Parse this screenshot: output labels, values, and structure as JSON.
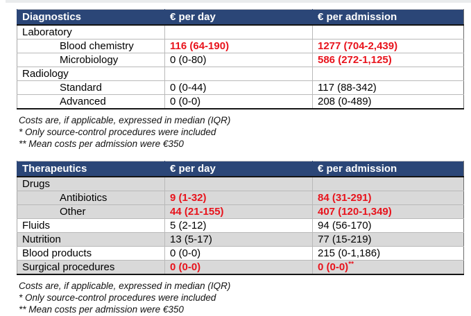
{
  "colors": {
    "header_bg": "#2B4677",
    "header_fg": "#FFFFFF",
    "shaded_row_bg": "#D9D9D9",
    "highlight_red": "#E8131C",
    "body_text": "#000000"
  },
  "chart_data": {
    "type": "table",
    "tables": [
      {
        "title": "Diagnostics",
        "columns": [
          "€ per day",
          "€ per admission"
        ],
        "rows": [
          {
            "label": "Laboratory",
            "indent": false,
            "per_day": "",
            "per_admission": "",
            "day_red": false,
            "adm_red": false,
            "shaded": false
          },
          {
            "label": "Blood chemistry",
            "indent": true,
            "per_day": "116 (64-190)",
            "per_admission": "1277 (704-2,439)",
            "day_red": true,
            "adm_red": true,
            "shaded": false
          },
          {
            "label": "Microbiology",
            "indent": true,
            "per_day": "0 (0-80)",
            "per_admission": "586 (272-1,125)",
            "day_red": false,
            "adm_red": true,
            "shaded": false
          },
          {
            "label": "Radiology",
            "indent": false,
            "per_day": "",
            "per_admission": "",
            "day_red": false,
            "adm_red": false,
            "shaded": false
          },
          {
            "label": "Standard",
            "indent": true,
            "per_day": "0 (0-44)",
            "per_admission": "117 (88-342)",
            "day_red": false,
            "adm_red": false,
            "shaded": false
          },
          {
            "label": "Advanced",
            "indent": true,
            "per_day": "0 (0-0)",
            "per_admission": "208 (0-489)",
            "day_red": false,
            "adm_red": false,
            "shaded": false
          }
        ],
        "footnotes": [
          "Costs are, if applicable, expressed in median (IQR)",
          "* Only source-control procedures were included",
          "** Mean costs per admission were €350"
        ]
      },
      {
        "title": "Therapeutics",
        "columns": [
          "€ per day",
          "€ per admission"
        ],
        "rows": [
          {
            "label": "Drugs",
            "indent": false,
            "per_day": "",
            "per_admission": "",
            "day_red": false,
            "adm_red": false,
            "shaded": true
          },
          {
            "label": "Antibiotics",
            "indent": true,
            "per_day": "9 (1-32)",
            "per_admission": "84 (31-291)",
            "day_red": true,
            "adm_red": true,
            "shaded": true
          },
          {
            "label": "Other",
            "indent": true,
            "per_day": "44 (21-155)",
            "per_admission": "407 (120-1,349)",
            "day_red": true,
            "adm_red": true,
            "shaded": true
          },
          {
            "label": "Fluids",
            "indent": false,
            "per_day": "5 (2-12)",
            "per_admission": "94 (56-170)",
            "day_red": false,
            "adm_red": false,
            "shaded": false
          },
          {
            "label": "Nutrition",
            "indent": false,
            "per_day": "13 (5-17)",
            "per_admission": "77 (15-219)",
            "day_red": false,
            "adm_red": false,
            "shaded": true
          },
          {
            "label": "Blood products",
            "indent": false,
            "per_day": "0 (0-0)",
            "per_admission": "215 (0-1,186)",
            "day_red": false,
            "adm_red": false,
            "shaded": false
          },
          {
            "label": "Surgical procedures",
            "indent": false,
            "per_day": "0 (0-0)",
            "per_admission": "0 (0-0)",
            "adm_superscript": "**",
            "day_red": true,
            "adm_red": true,
            "shaded": true
          }
        ],
        "footnotes": [
          "Costs are, if applicable, expressed in median (IQR)",
          "* Only source-control procedures were included",
          "** Mean costs per admission were €350"
        ]
      }
    ]
  }
}
